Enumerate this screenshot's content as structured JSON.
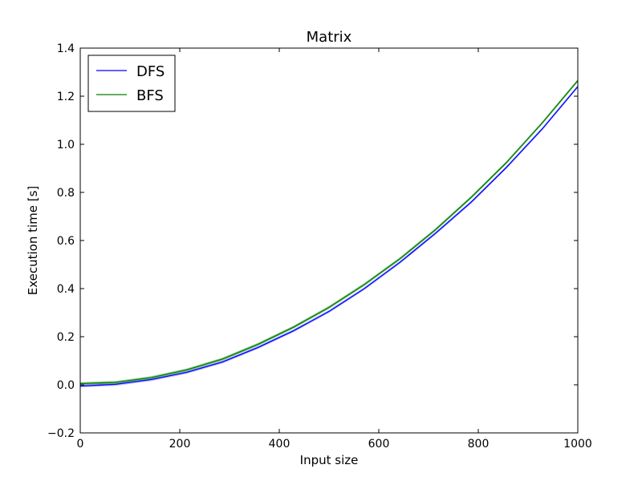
{
  "chart_data": {
    "type": "line",
    "title": "Matrix",
    "xlabel": "Input size",
    "ylabel": "Execution time [s]",
    "xlim": [
      0,
      1000
    ],
    "ylim": [
      -0.2,
      1.4
    ],
    "xticks": [
      0,
      200,
      400,
      600,
      800,
      1000
    ],
    "yticks": [
      -0.2,
      0.0,
      0.2,
      0.4,
      0.6,
      0.8,
      1.0,
      1.2,
      1.4
    ],
    "xtick_labels": [
      "0",
      "200",
      "400",
      "600",
      "800",
      "1000"
    ],
    "ytick_labels": [
      "−0.2",
      "0.0",
      "0.2",
      "0.4",
      "0.6",
      "0.8",
      "1.0",
      "1.2",
      "1.4"
    ],
    "grid": false,
    "legend_position": "top-left",
    "series": [
      {
        "name": "DFS",
        "color": "#0000ff",
        "band_color": "#8080ff",
        "x": [
          0,
          71,
          143,
          214,
          286,
          357,
          429,
          500,
          571,
          643,
          714,
          786,
          857,
          929,
          1000
        ],
        "y": [
          -0.005,
          0.002,
          0.022,
          0.052,
          0.095,
          0.155,
          0.225,
          0.305,
          0.4,
          0.51,
          0.63,
          0.76,
          0.905,
          1.065,
          1.24
        ],
        "band": 0.006
      },
      {
        "name": "BFS",
        "color": "#008000",
        "band_color": "#40a040",
        "x": [
          0,
          71,
          143,
          214,
          286,
          357,
          429,
          500,
          571,
          643,
          714,
          786,
          857,
          929,
          1000
        ],
        "y": [
          0.005,
          0.01,
          0.03,
          0.062,
          0.107,
          0.168,
          0.24,
          0.322,
          0.417,
          0.525,
          0.645,
          0.78,
          0.925,
          1.09,
          1.265
        ],
        "band": 0.006
      }
    ]
  }
}
